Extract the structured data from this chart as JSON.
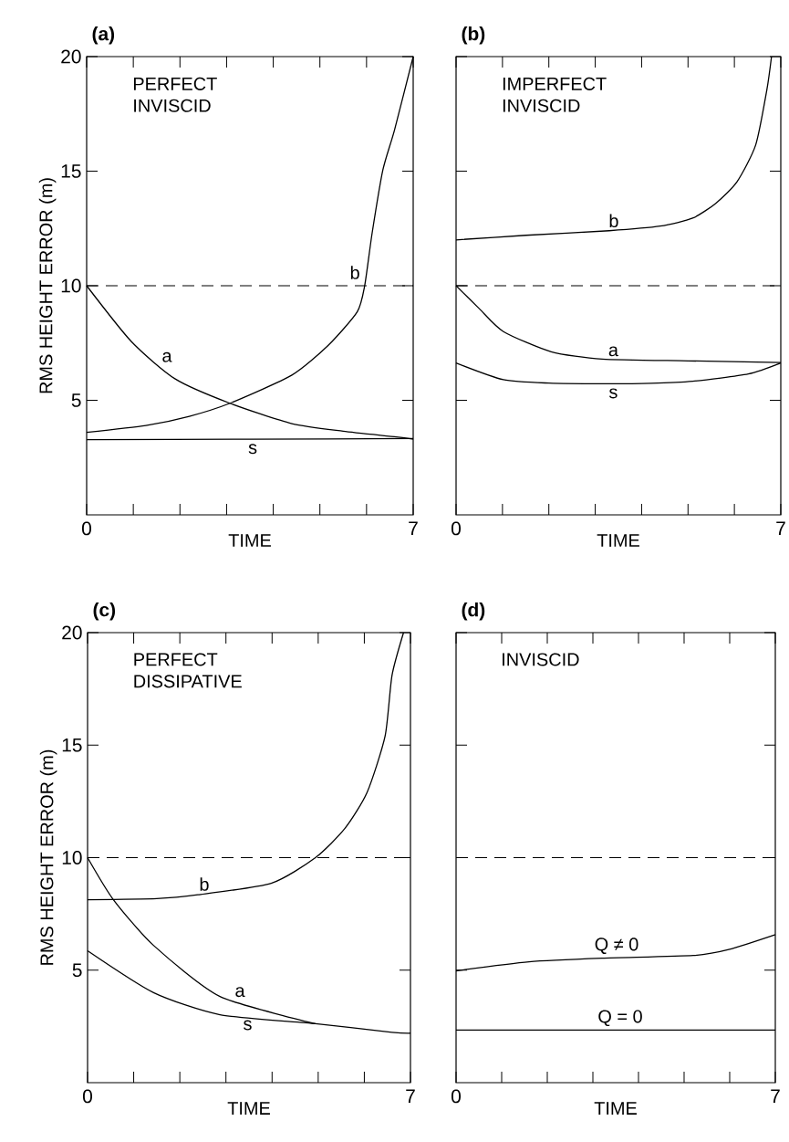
{
  "chart_data": [
    {
      "type": "line",
      "title": "(a)",
      "xlabel": "TIME",
      "ylabel": "RMS HEIGHT ERROR (m)",
      "xlim": [
        0,
        7
      ],
      "ylim": [
        0,
        20
      ],
      "xticks": [
        0,
        {
          "value": 1,
          "label": null
        },
        {
          "value": 2,
          "label": null
        },
        {
          "value": 3,
          "label": null
        },
        {
          "value": 4,
          "label": null
        },
        {
          "value": 5,
          "label": null
        },
        {
          "value": 6,
          "label": null
        },
        7
      ],
      "yticks": [
        5,
        10,
        15,
        20
      ],
      "line_style": "solid",
      "ref_lines": [
        {
          "axis": "y",
          "value": 10,
          "line_style": "dashed"
        }
      ],
      "series": [
        {
          "name": "a",
          "color": "#000000",
          "x": [
            0,
            0.96,
            1.9,
            3.07,
            4.4,
            5.5,
            6.64,
            7
          ],
          "values": [
            10,
            7.56,
            5.93,
            4.87,
            3.98,
            3.65,
            3.4,
            3.3
          ]
        },
        {
          "name": "b",
          "color": "#000000",
          "x": [
            0,
            1.27,
            2.2,
            3.07,
            4.4,
            5.18,
            5.8,
            5.96,
            6.12,
            6.35,
            6.6,
            7
          ],
          "values": [
            3.6,
            3.9,
            4.3,
            4.87,
            6.1,
            7.4,
            8.86,
            10,
            12.3,
            15.05,
            16.8,
            20
          ]
        },
        {
          "name": "s",
          "color": "#000000",
          "x": [
            0,
            3.5,
            7
          ],
          "values": [
            3.28,
            3.3,
            3.33
          ]
        }
      ],
      "annotations": [
        "PERFECT INVISCID"
      ]
    },
    {
      "type": "line",
      "title": "(b)",
      "xlabel": "TIME",
      "xlim": [
        0,
        7
      ],
      "ylim": [
        0,
        20
      ],
      "xticks": [
        0,
        {
          "value": 1,
          "label": null
        },
        {
          "value": 2,
          "label": null
        },
        {
          "value": 3,
          "label": null
        },
        {
          "value": 4,
          "label": null
        },
        {
          "value": 5,
          "label": null
        },
        {
          "value": 6,
          "label": null
        },
        7
      ],
      "yticks": [
        5,
        10,
        15,
        20
      ],
      "tick_labels": "x",
      "line_style": "solid",
      "ref_lines": [
        {
          "axis": "y",
          "value": 10,
          "line_style": "dashed"
        }
      ],
      "series": [
        {
          "name": "b",
          "color": "#000000",
          "x": [
            0,
            1.5,
            3.3,
            4.4,
            5.1,
            5.6,
            6.06,
            6.46,
            6.7,
            6.8
          ],
          "values": [
            12.0,
            12.2,
            12.4,
            12.6,
            12.95,
            13.6,
            14.55,
            16.15,
            18.55,
            20
          ]
        },
        {
          "name": "a",
          "color": "#000000",
          "x": [
            0,
            0.5,
            1.02,
            2.05,
            3.15,
            5,
            7
          ],
          "values": [
            10,
            9.0,
            8.0,
            7.12,
            6.8,
            6.72,
            6.65
          ]
        },
        {
          "name": "s",
          "color": "#000000",
          "x": [
            0,
            1.02,
            2,
            3.15,
            4.2,
            5.1,
            6.3,
            7
          ],
          "values": [
            6.63,
            5.9,
            5.75,
            5.72,
            5.74,
            5.83,
            6.15,
            6.63
          ]
        }
      ],
      "annotations": [
        "IMPERFECT INVISCID"
      ]
    },
    {
      "type": "line",
      "title": "(c)",
      "xlabel": "TIME",
      "ylabel": "RMS HEIGHT ERROR (m)",
      "xlim": [
        0,
        7
      ],
      "ylim": [
        0,
        20
      ],
      "xticks": [
        0,
        {
          "value": 1,
          "label": null
        },
        {
          "value": 2,
          "label": null
        },
        {
          "value": 3,
          "label": null
        },
        {
          "value": 4,
          "label": null
        },
        {
          "value": 5,
          "label": null
        },
        {
          "value": 6,
          "label": null
        },
        7
      ],
      "yticks": [
        5,
        10,
        15,
        20
      ],
      "line_style": "solid",
      "ref_lines": [
        {
          "axis": "y",
          "value": 10,
          "line_style": "dashed"
        }
      ],
      "series": [
        {
          "name": "b",
          "color": "#000000",
          "x": [
            0,
            1.5,
            2.39,
            3.98,
            4.94,
            5.58,
            6.06,
            6.45,
            6.6,
            6.85
          ],
          "values": [
            8.13,
            8.18,
            8.35,
            8.86,
            10,
            11.3,
            12.9,
            15.4,
            18.1,
            20
          ]
        },
        {
          "name": "a",
          "color": "#000000",
          "x": [
            0,
            0.56,
            1.43,
            2.87,
            4.94
          ],
          "values": [
            10,
            8.13,
            6.1,
            3.83,
            2.62
          ]
        },
        {
          "name": "s",
          "color": "#000000",
          "x": [
            0,
            1.43,
            2.87,
            4.94,
            6.6,
            7
          ],
          "values": [
            5.86,
            4.0,
            3.02,
            2.62,
            2.24,
            2.2
          ]
        }
      ],
      "annotations": [
        "PERFECT DISSIPATIVE"
      ]
    },
    {
      "type": "line",
      "title": "(d)",
      "xlabel": "TIME",
      "xlim": [
        0,
        7
      ],
      "ylim": [
        0,
        20
      ],
      "xticks": [
        0,
        {
          "value": 1,
          "label": null
        },
        {
          "value": 2,
          "label": null
        },
        {
          "value": 3,
          "label": null
        },
        {
          "value": 4,
          "label": null
        },
        {
          "value": 5,
          "label": null
        },
        {
          "value": 6,
          "label": null
        },
        7
      ],
      "yticks": [
        5,
        10,
        15,
        20
      ],
      "tick_labels": "x",
      "line_style": "solid",
      "ref_lines": [
        {
          "axis": "y",
          "value": 10,
          "line_style": "dashed"
        }
      ],
      "series": [
        {
          "name": "Q ≠ 0",
          "color": "#000000",
          "x": [
            0,
            1.6,
            3.2,
            5.2,
            6.0,
            7
          ],
          "values": [
            4.97,
            5.37,
            5.53,
            5.65,
            5.93,
            6.58
          ]
        },
        {
          "name": "Q = 0",
          "color": "#000000",
          "x": [
            0,
            3.5,
            7
          ],
          "values": [
            2.34,
            2.34,
            2.34
          ]
        }
      ],
      "annotations": [
        "INVISCID"
      ]
    }
  ]
}
